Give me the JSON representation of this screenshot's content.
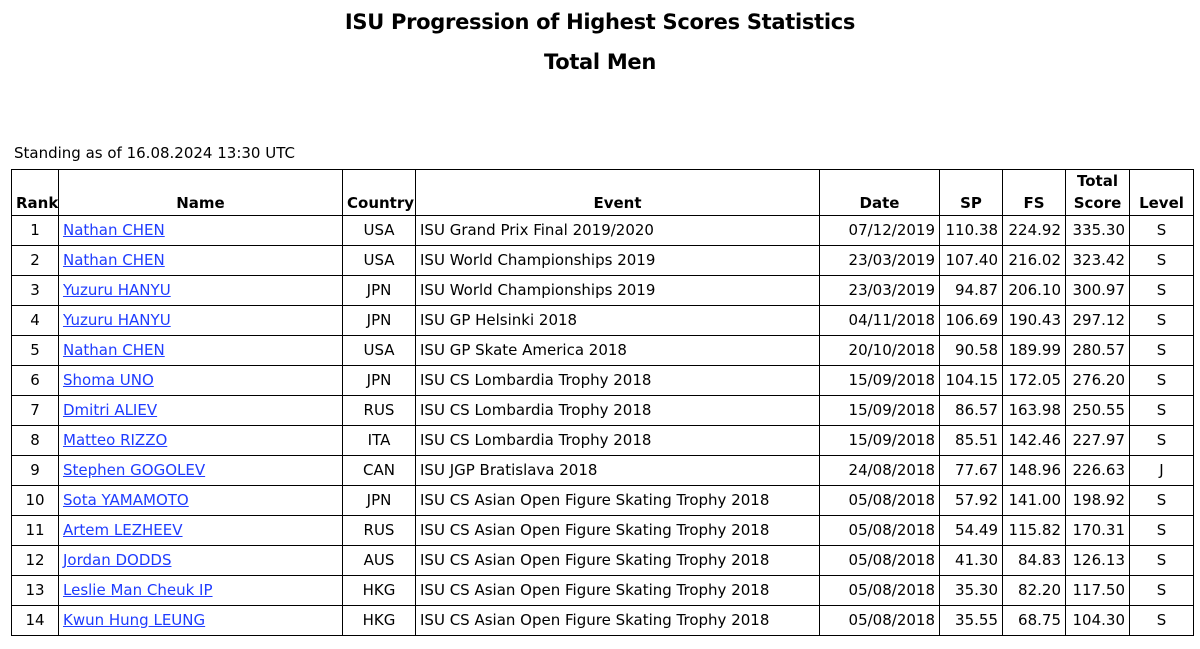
{
  "title_line1": "ISU Progression of Highest Scores Statistics",
  "title_line2": "Total Men",
  "standing": "Standing as of 16.08.2024 13:30 UTC",
  "headers": {
    "rank": "Rank",
    "name": "Name",
    "country": "Country",
    "event": "Event",
    "date": "Date",
    "sp": "SP",
    "fs": "FS",
    "total_line1": "Total",
    "total_line2": "Score",
    "level": "Level"
  },
  "rows": [
    {
      "rank": "1",
      "name": "Nathan CHEN",
      "country": "USA",
      "event": "ISU Grand Prix Final 2019/2020",
      "date": "07/12/2019",
      "sp": "110.38",
      "fs": "224.92",
      "total": "335.30",
      "level": "S"
    },
    {
      "rank": "2",
      "name": "Nathan CHEN",
      "country": "USA",
      "event": "ISU World Championships 2019",
      "date": "23/03/2019",
      "sp": "107.40",
      "fs": "216.02",
      "total": "323.42",
      "level": "S"
    },
    {
      "rank": "3",
      "name": "Yuzuru HANYU",
      "country": "JPN",
      "event": "ISU World Championships 2019",
      "date": "23/03/2019",
      "sp": "94.87",
      "fs": "206.10",
      "total": "300.97",
      "level": "S"
    },
    {
      "rank": "4",
      "name": "Yuzuru HANYU",
      "country": "JPN",
      "event": "ISU GP Helsinki 2018",
      "date": "04/11/2018",
      "sp": "106.69",
      "fs": "190.43",
      "total": "297.12",
      "level": "S"
    },
    {
      "rank": "5",
      "name": "Nathan CHEN",
      "country": "USA",
      "event": "ISU GP Skate America 2018",
      "date": "20/10/2018",
      "sp": "90.58",
      "fs": "189.99",
      "total": "280.57",
      "level": "S"
    },
    {
      "rank": "6",
      "name": "Shoma UNO",
      "country": "JPN",
      "event": "ISU CS Lombardia Trophy 2018",
      "date": "15/09/2018",
      "sp": "104.15",
      "fs": "172.05",
      "total": "276.20",
      "level": "S"
    },
    {
      "rank": "7",
      "name": "Dmitri ALIEV",
      "country": "RUS",
      "event": "ISU CS Lombardia Trophy 2018",
      "date": "15/09/2018",
      "sp": "86.57",
      "fs": "163.98",
      "total": "250.55",
      "level": "S"
    },
    {
      "rank": "8",
      "name": "Matteo RIZZO",
      "country": "ITA",
      "event": "ISU CS Lombardia Trophy 2018",
      "date": "15/09/2018",
      "sp": "85.51",
      "fs": "142.46",
      "total": "227.97",
      "level": "S"
    },
    {
      "rank": "9",
      "name": "Stephen GOGOLEV",
      "country": "CAN",
      "event": "ISU JGP Bratislava 2018",
      "date": "24/08/2018",
      "sp": "77.67",
      "fs": "148.96",
      "total": "226.63",
      "level": "J"
    },
    {
      "rank": "10",
      "name": "Sota YAMAMOTO",
      "country": "JPN",
      "event": "ISU CS Asian Open Figure Skating Trophy 2018",
      "date": "05/08/2018",
      "sp": "57.92",
      "fs": "141.00",
      "total": "198.92",
      "level": "S"
    },
    {
      "rank": "11",
      "name": "Artem LEZHEEV",
      "country": "RUS",
      "event": "ISU CS Asian Open Figure Skating Trophy 2018",
      "date": "05/08/2018",
      "sp": "54.49",
      "fs": "115.82",
      "total": "170.31",
      "level": "S"
    },
    {
      "rank": "12",
      "name": "Jordan DODDS",
      "country": "AUS",
      "event": "ISU CS Asian Open Figure Skating Trophy 2018",
      "date": "05/08/2018",
      "sp": "41.30",
      "fs": "84.83",
      "total": "126.13",
      "level": "S"
    },
    {
      "rank": "13",
      "name": "Leslie Man Cheuk IP",
      "country": "HKG",
      "event": "ISU CS Asian Open Figure Skating Trophy 2018",
      "date": "05/08/2018",
      "sp": "35.30",
      "fs": "82.20",
      "total": "117.50",
      "level": "S"
    },
    {
      "rank": "14",
      "name": "Kwun Hung LEUNG",
      "country": "HKG",
      "event": "ISU CS Asian Open Figure Skating Trophy 2018",
      "date": "05/08/2018",
      "sp": "35.55",
      "fs": "68.75",
      "total": "104.30",
      "level": "S"
    }
  ]
}
